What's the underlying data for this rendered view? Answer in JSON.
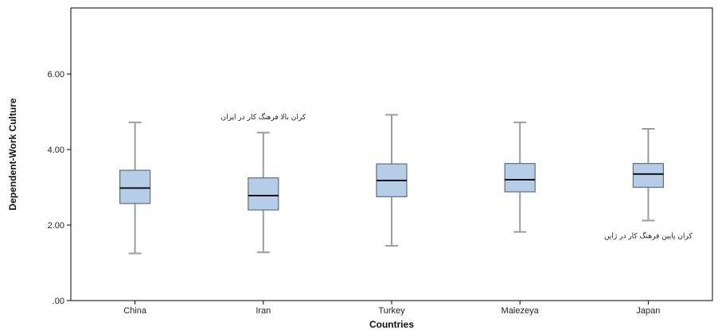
{
  "chart_data": {
    "type": "boxplot",
    "categories": [
      "China",
      "Iran",
      "Turkey",
      "Malezeya",
      "Japan"
    ],
    "boxes": [
      {
        "min": 1.25,
        "q1": 2.57,
        "median": 2.98,
        "q3": 3.45,
        "max": 4.72
      },
      {
        "min": 1.28,
        "q1": 2.4,
        "median": 2.78,
        "q3": 3.25,
        "max": 4.45
      },
      {
        "min": 1.45,
        "q1": 2.75,
        "median": 3.18,
        "q3": 3.62,
        "max": 4.92
      },
      {
        "min": 1.82,
        "q1": 2.88,
        "median": 3.2,
        "q3": 3.63,
        "max": 4.72
      },
      {
        "min": 2.12,
        "q1": 3.0,
        "median": 3.35,
        "q3": 3.63,
        "max": 4.55
      }
    ],
    "xlabel": "Countries",
    "ylabel": "Dependent-Work Culture",
    "ylim": [
      0,
      7.75
    ],
    "yticks": [
      0,
      2,
      4,
      6
    ],
    "ytick_labels": [
      ".00",
      "2.00",
      "4.00",
      "6.00"
    ],
    "annotations": [
      {
        "text": "کران بالا فرهنگ کار در ایران",
        "category": "Iran",
        "value": 4.8
      },
      {
        "text": "کران پایین فرهنگ کار در ژاپن",
        "category": "Japan",
        "value": 1.65
      }
    ],
    "colors": {
      "box_fill": "#b5cde6",
      "box_stroke": "#5a6f85",
      "whisker": "#9c9c9c",
      "median": "#111111"
    }
  }
}
